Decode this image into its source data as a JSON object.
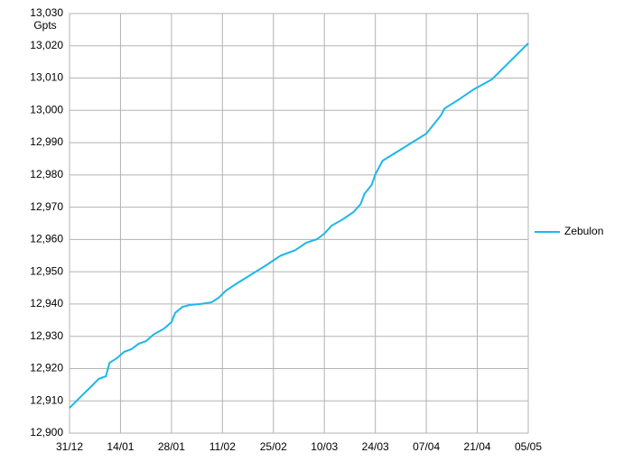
{
  "chart_data": {
    "type": "line",
    "y_label": "Gpts",
    "x": [
      "31/12",
      "03/01",
      "06/01",
      "08/01",
      "10/01",
      "11/01",
      "13/01",
      "15/01",
      "17/01",
      "19/01",
      "21/01",
      "23/01",
      "26/01",
      "28/01",
      "29/01",
      "31/01",
      "02/02",
      "05/02",
      "08/02",
      "10/02",
      "12/02",
      "15/02",
      "19/02",
      "23/02",
      "27/02",
      "02/03",
      "05/03",
      "08/03",
      "10/03",
      "12/03",
      "15/03",
      "18/03",
      "20/03",
      "21/03",
      "23/03",
      "24/03",
      "26/03",
      "30/03",
      "03/04",
      "07/04",
      "09/04",
      "11/04",
      "12/04",
      "16/04",
      "20/04",
      "25/04",
      "05/05"
    ],
    "series": [
      {
        "name": "Zebulon",
        "color": "#1cb8e8",
        "values": [
          12907.8,
          12911.2,
          12914.5,
          12916.8,
          12917.6,
          12921.8,
          12923.2,
          12925.2,
          12926,
          12927.7,
          12928.5,
          12930.5,
          12932.4,
          12934.4,
          12937.2,
          12939.1,
          12939.7,
          12940,
          12940.5,
          12942,
          12944.2,
          12946.4,
          12949.2,
          12952,
          12955,
          12956.7,
          12959,
          12960.1,
          12961.8,
          12964.3,
          12966.2,
          12968.5,
          12971,
          12974.1,
          12976.9,
          12980.2,
          12984.4,
          12987.2,
          12990,
          12992.8,
          12995.6,
          12998.4,
          13000.6,
          13003.4,
          13006.5,
          13009.6,
          13020.8
        ]
      }
    ],
    "xlim": [
      "31/12",
      "05/05"
    ],
    "xticks": [
      "31/12",
      "14/01",
      "28/01",
      "11/02",
      "25/02",
      "10/03",
      "24/03",
      "07/04",
      "21/04",
      "05/05"
    ],
    "ylim": [
      12900,
      13030
    ],
    "yticks": [
      {
        "value": 12900,
        "label": "12,900"
      },
      {
        "value": 12910,
        "label": "12,910"
      },
      {
        "value": 12920,
        "label": "12,920"
      },
      {
        "value": 12930,
        "label": "12,930"
      },
      {
        "value": 12940,
        "label": "12,940"
      },
      {
        "value": 12950,
        "label": "12,950"
      },
      {
        "value": 12960,
        "label": "12,960"
      },
      {
        "value": 12970,
        "label": "12,970"
      },
      {
        "value": 12980,
        "label": "12,980"
      },
      {
        "value": 12990,
        "label": "12,990"
      },
      {
        "value": 13000,
        "label": "13,000"
      },
      {
        "value": 13010,
        "label": "13,010"
      },
      {
        "value": 13020,
        "label": "13,020"
      },
      {
        "value": 13030,
        "label": "13,030"
      }
    ],
    "grid": true,
    "legend": "right"
  }
}
